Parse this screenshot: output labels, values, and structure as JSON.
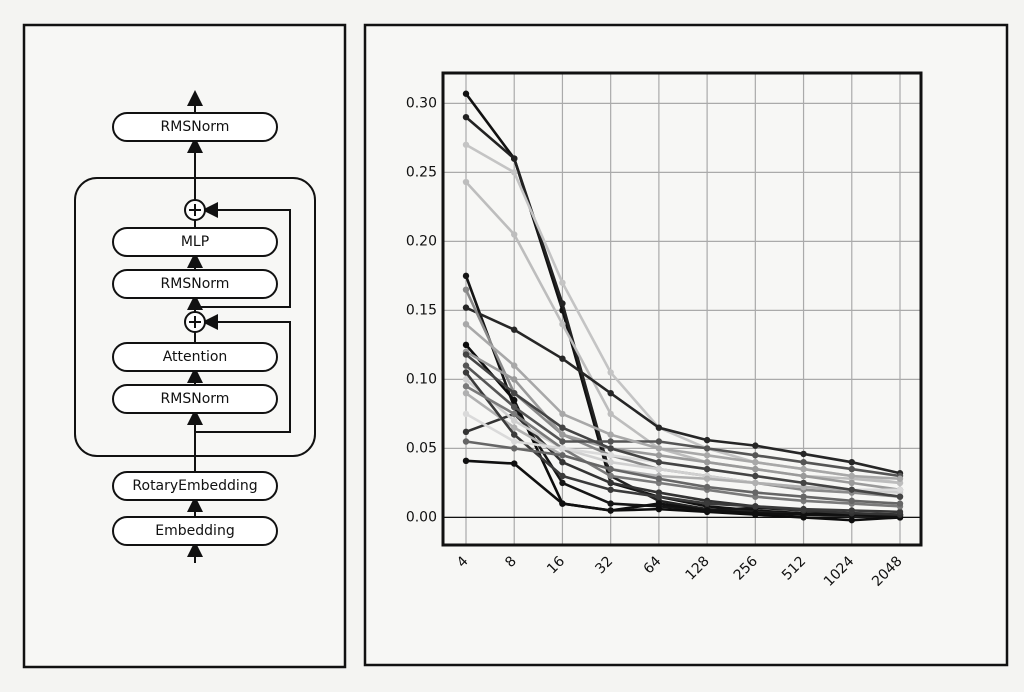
{
  "diagram": {
    "nodes": [
      "RMSNorm",
      "MLP",
      "RMSNorm",
      "Attention",
      "RMSNorm",
      "RotaryEmbedding",
      "Embedding"
    ]
  },
  "chart_data": {
    "type": "line",
    "categories": [
      "4",
      "8",
      "16",
      "32",
      "64",
      "128",
      "256",
      "512",
      "1024",
      "2048"
    ],
    "ylim": [
      -0.02,
      0.322
    ],
    "yticks": [
      {
        "value": 0,
        "label": "0.00"
      },
      {
        "value": 0.05,
        "label": "0.05"
      },
      {
        "value": 0.1,
        "label": "0.10"
      },
      {
        "value": 0.15,
        "label": "0.15"
      },
      {
        "value": 0.2,
        "label": "0.20"
      },
      {
        "value": 0.25,
        "label": "0.25"
      },
      {
        "value": 0.3,
        "label": "0.30"
      }
    ],
    "grid": true,
    "series": [
      {
        "color": "#111111",
        "values": [
          0.307,
          0.26,
          0.15,
          0.025,
          0.015,
          0.008,
          0.005,
          0.003,
          0.002,
          0.001
        ]
      },
      {
        "color": "#222222",
        "values": [
          0.29,
          0.26,
          0.155,
          0.03,
          0.012,
          0.006,
          0.004,
          0.002,
          0.001,
          0.0
        ]
      },
      {
        "color": "#c4c4c4",
        "values": [
          0.27,
          0.25,
          0.17,
          0.105,
          0.065,
          0.05,
          0.04,
          0.035,
          0.03,
          0.025
        ]
      },
      {
        "color": "#bdbdbd",
        "values": [
          0.243,
          0.205,
          0.14,
          0.075,
          0.05,
          0.04,
          0.035,
          0.03,
          0.028,
          0.025
        ]
      },
      {
        "color": "#151515",
        "values": [
          0.175,
          0.08,
          0.025,
          0.01,
          0.008,
          0.005,
          0.007,
          0.005,
          0.003,
          0.002
        ]
      },
      {
        "color": "#262626",
        "values": [
          0.152,
          0.136,
          0.115,
          0.09,
          0.065,
          0.056,
          0.052,
          0.046,
          0.04,
          0.032
        ]
      },
      {
        "color": "#8a8a8a",
        "values": [
          0.165,
          0.09,
          0.06,
          0.045,
          0.035,
          0.03,
          0.025,
          0.02,
          0.018,
          0.015
        ]
      },
      {
        "color": "#0d0d0d",
        "values": [
          0.125,
          0.085,
          0.01,
          0.005,
          0.006,
          0.004,
          0.002,
          0.0,
          -0.002,
          0.0
        ]
      },
      {
        "color": "#101010",
        "values": [
          0.041,
          0.039,
          0.01,
          0.005,
          0.01,
          0.005,
          0.003,
          0.002,
          0.002,
          0.0
        ]
      },
      {
        "color": "#333333",
        "values": [
          0.062,
          0.075,
          0.04,
          0.025,
          0.018,
          0.012,
          0.008,
          0.005,
          0.003,
          0.002
        ]
      },
      {
        "color": "#9a9a9a",
        "values": [
          0.12,
          0.1,
          0.06,
          0.05,
          0.045,
          0.04,
          0.035,
          0.03,
          0.025,
          0.02
        ]
      },
      {
        "color": "#555555",
        "values": [
          0.11,
          0.08,
          0.055,
          0.055,
          0.055,
          0.05,
          0.045,
          0.04,
          0.035,
          0.03
        ]
      },
      {
        "color": "#d0d0d0",
        "values": [
          0.1,
          0.07,
          0.05,
          0.04,
          0.035,
          0.03,
          0.025,
          0.022,
          0.02,
          0.018
        ]
      },
      {
        "color": "#b0b0b0",
        "values": [
          0.09,
          0.065,
          0.045,
          0.035,
          0.03,
          0.028,
          0.025,
          0.022,
          0.02,
          0.02
        ]
      },
      {
        "color": "#3a3a3a",
        "values": [
          0.105,
          0.06,
          0.03,
          0.02,
          0.015,
          0.01,
          0.008,
          0.006,
          0.005,
          0.004
        ]
      },
      {
        "color": "#7a7a7a",
        "values": [
          0.095,
          0.075,
          0.05,
          0.03,
          0.025,
          0.02,
          0.015,
          0.012,
          0.01,
          0.008
        ]
      },
      {
        "color": "#dadada",
        "values": [
          0.075,
          0.055,
          0.05,
          0.045,
          0.04,
          0.035,
          0.03,
          0.025,
          0.02,
          0.02
        ]
      },
      {
        "color": "#666666",
        "values": [
          0.055,
          0.05,
          0.045,
          0.035,
          0.028,
          0.022,
          0.018,
          0.015,
          0.012,
          0.01
        ]
      },
      {
        "color": "#a8a8a8",
        "values": [
          0.14,
          0.11,
          0.075,
          0.06,
          0.05,
          0.045,
          0.04,
          0.035,
          0.03,
          0.028
        ]
      },
      {
        "color": "#444444",
        "values": [
          0.118,
          0.09,
          0.065,
          0.05,
          0.04,
          0.035,
          0.03,
          0.025,
          0.02,
          0.015
        ]
      }
    ]
  }
}
